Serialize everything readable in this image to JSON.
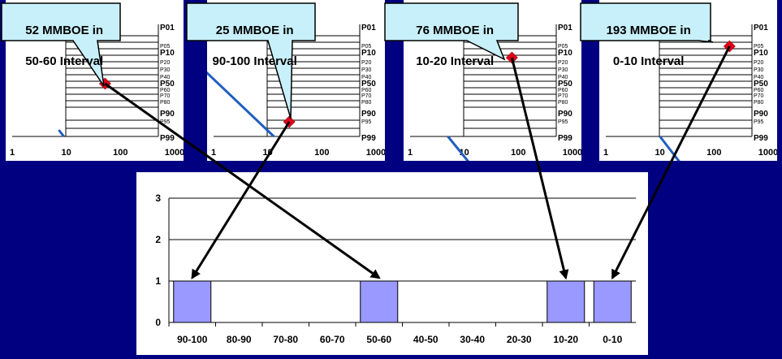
{
  "callouts": [
    {
      "line1": "52 MMBOE in",
      "line2": "50-60 Interval"
    },
    {
      "line1": "25 MMBOE in",
      "line2": "90-100 Interval"
    },
    {
      "line1": "76 MMBOE in",
      "line2": "10-20 Interval"
    },
    {
      "line1": "193 MMBOE in",
      "line2": "0-10 Interval"
    }
  ],
  "chart_data": [
    {
      "type": "line",
      "xscale": "log",
      "xticks": [
        "1",
        "10",
        "100",
        "1000"
      ],
      "percentile_labels": [
        "P01",
        "P05",
        "P10",
        "P20",
        "P30",
        "P40",
        "P50",
        "P60",
        "P70",
        "P80",
        "P90",
        "P95",
        "P99"
      ],
      "line_x_range": [
        9,
        1000
      ],
      "highlight_value": 52,
      "highlight_percentile": 50,
      "annotation": "52 MMBOE in 50-60 Interval"
    },
    {
      "type": "line",
      "xscale": "log",
      "xticks": [
        "1",
        "10",
        "100",
        "1000"
      ],
      "percentile_labels": [
        "P01",
        "P05",
        "P10",
        "P20",
        "P30",
        "P40",
        "P50",
        "P60",
        "P70",
        "P80",
        "P90",
        "P95",
        "P99"
      ],
      "line_x_range": [
        13,
        1000
      ],
      "highlight_value": 25,
      "highlight_percentile": 95,
      "annotation": "25 MMBOE in 90-100 Interval"
    },
    {
      "type": "line",
      "xscale": "log",
      "xticks": [
        "1",
        "10",
        "100",
        "1000"
      ],
      "percentile_labels": [
        "P01",
        "P05",
        "P10",
        "P20",
        "P30",
        "P40",
        "P50",
        "P60",
        "P70",
        "P80",
        "P90",
        "P95",
        "P99"
      ],
      "line_x_range": [
        5,
        1000
      ],
      "highlight_value": 76,
      "highlight_percentile": 15,
      "annotation": "76 MMBOE in 10-20 Interval"
    },
    {
      "type": "line",
      "xscale": "log",
      "xticks": [
        "1",
        "10",
        "100",
        "1000"
      ],
      "percentile_labels": [
        "P01",
        "P05",
        "P10",
        "P20",
        "P30",
        "P40",
        "P50",
        "P60",
        "P70",
        "P80",
        "P90",
        "P95",
        "P99"
      ],
      "line_x_range": [
        10,
        1000
      ],
      "highlight_value": 193,
      "highlight_percentile": 5,
      "annotation": "193 MMBOE in 0-10 Interval"
    },
    {
      "type": "bar",
      "categories": [
        "90-100",
        "80-90",
        "70-80",
        "60-70",
        "50-60",
        "40-50",
        "30-40",
        "20-30",
        "10-20",
        "0-10"
      ],
      "values": [
        1,
        0,
        0,
        0,
        1,
        0,
        0,
        0,
        1,
        1
      ],
      "yticks": [
        "0",
        "1",
        "2",
        "3"
      ],
      "ylim": [
        0,
        3
      ],
      "grid": true
    }
  ],
  "colors": {
    "background": "#000080",
    "line": "#1f5fbf",
    "marker": "#e0001a",
    "bar": "#9999ff",
    "callout": "#c8f0fa",
    "arrow": "#000000"
  }
}
